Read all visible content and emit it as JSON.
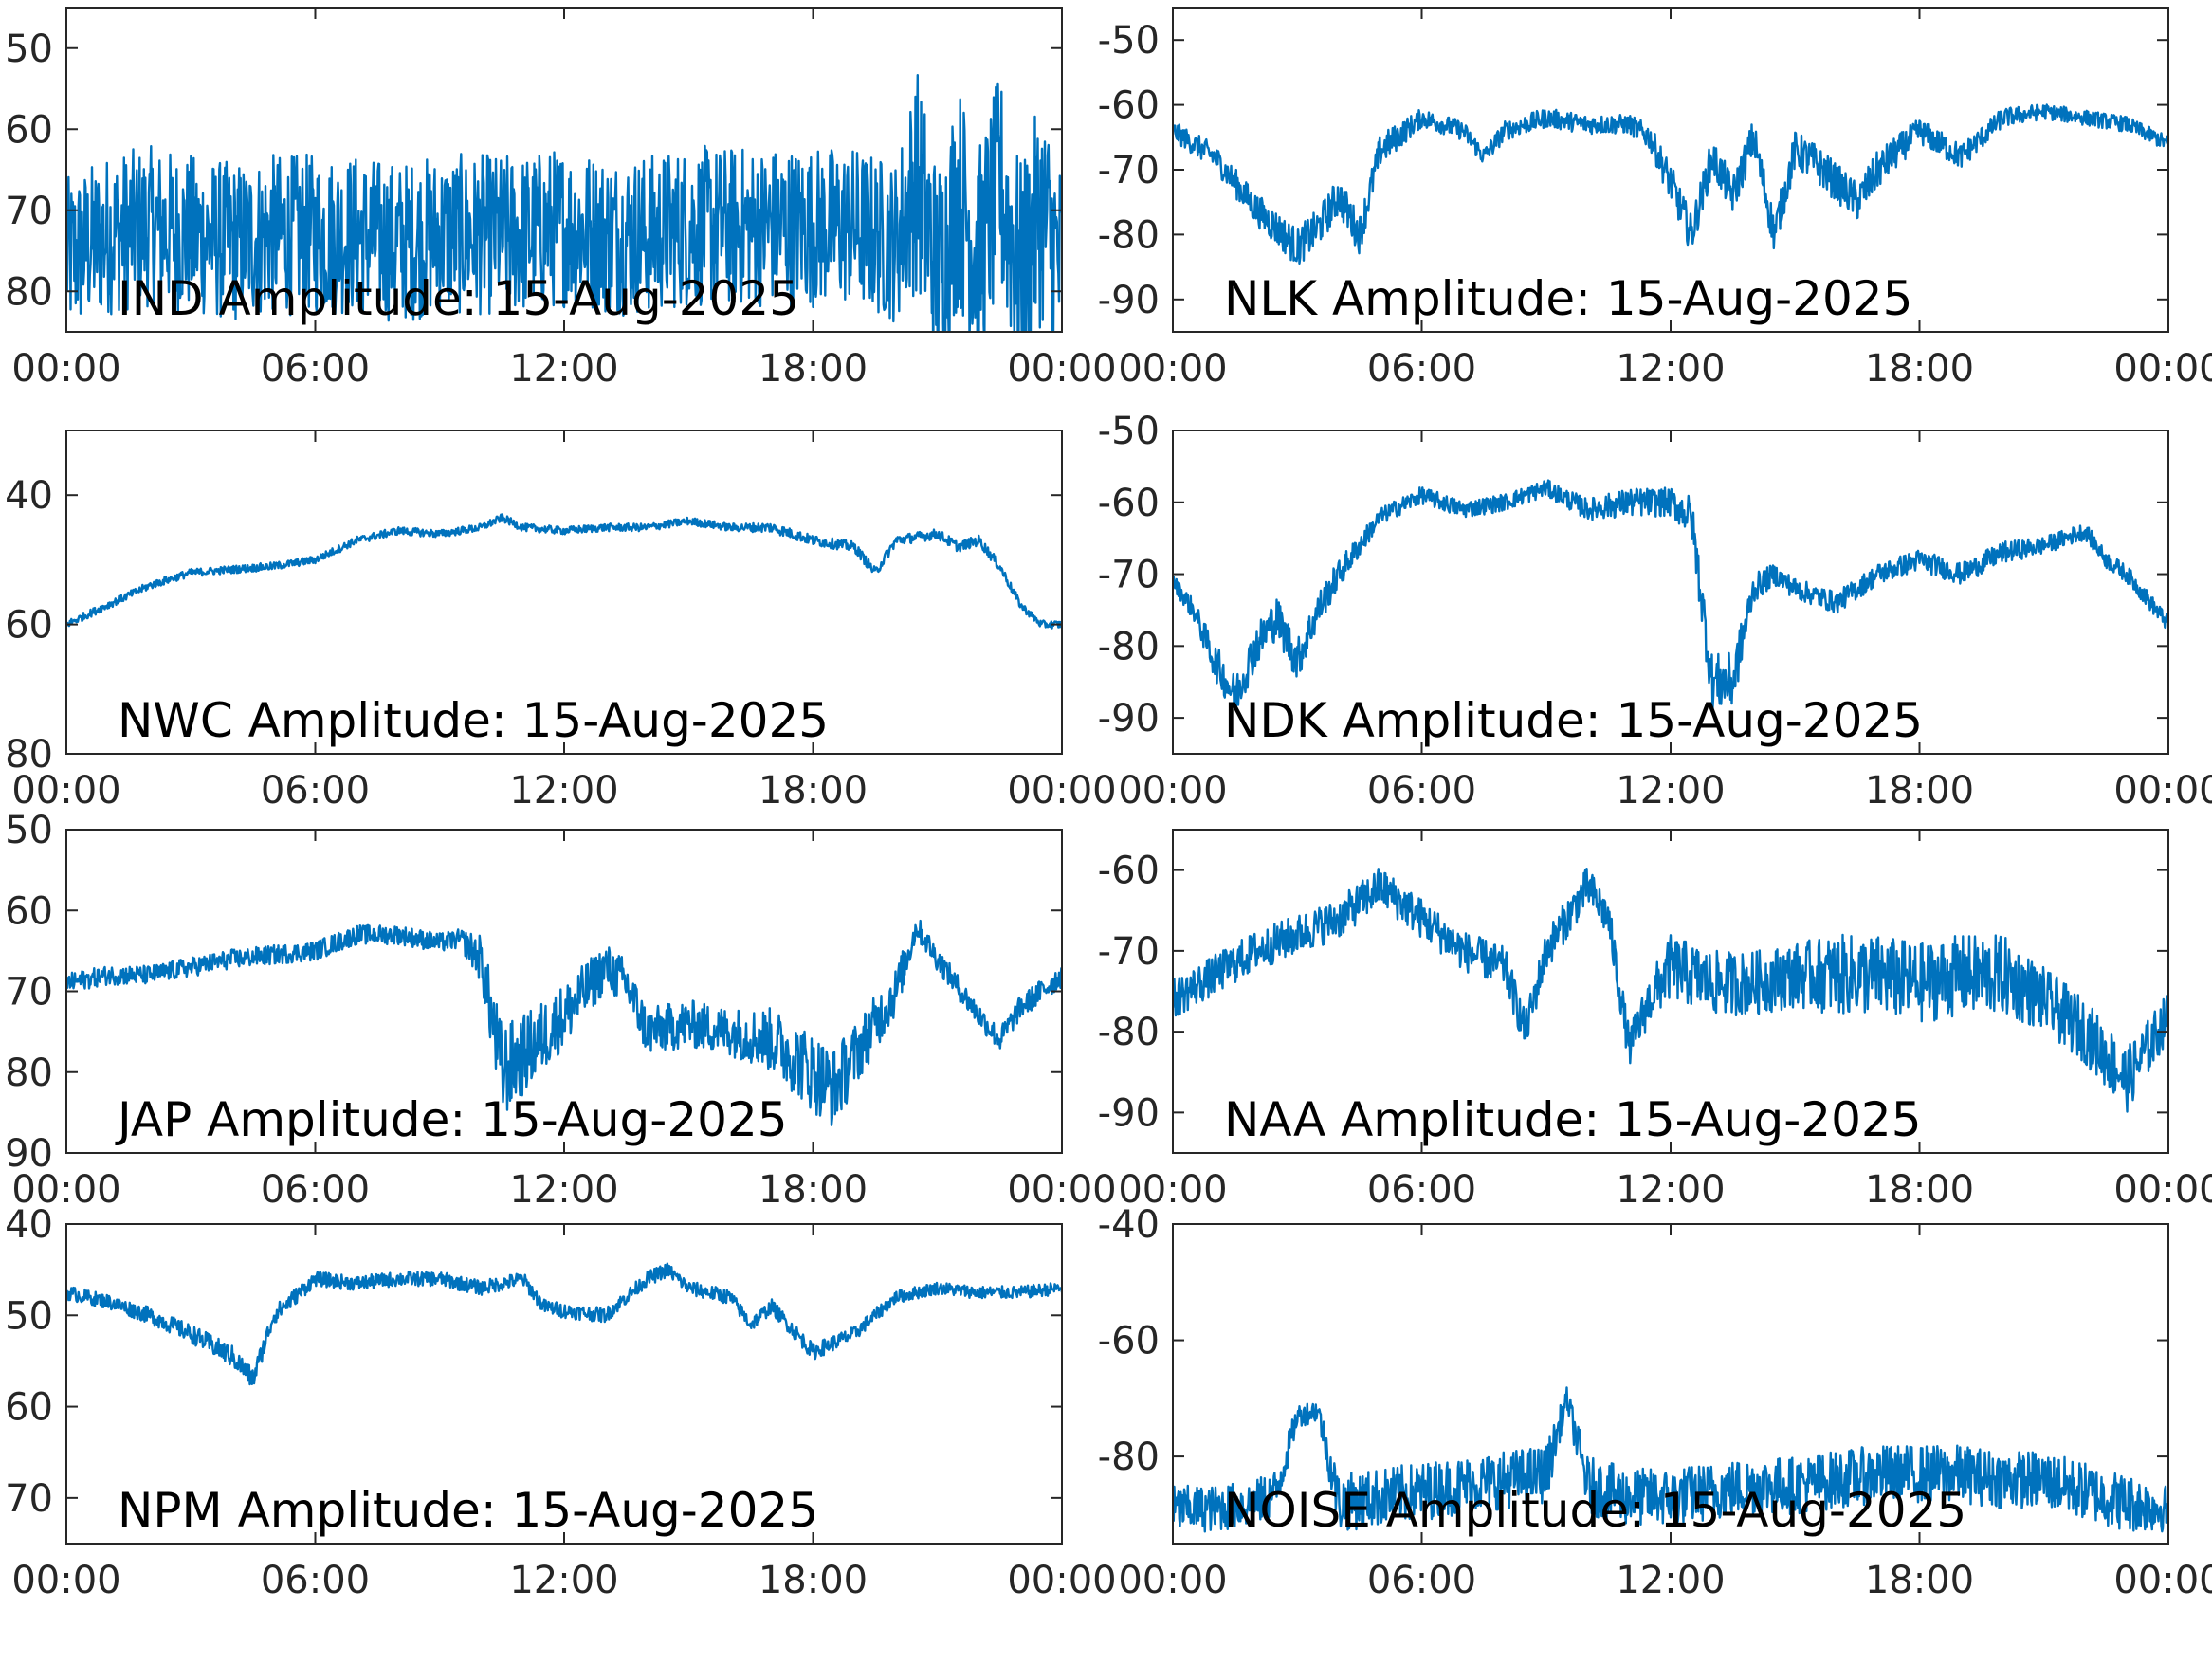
{
  "series_color": "#0072BD",
  "x_tick_labels": [
    "00:00",
    "06:00",
    "12:00",
    "18:00",
    "00:00"
  ],
  "chart_data": [
    {
      "type": "line",
      "label": "IND Amplitude: 15-Aug-2025",
      "x_ticks": [
        "00:00",
        "06:00",
        "12:00",
        "18:00",
        "00:00"
      ],
      "ylim": [
        -85,
        -45
      ],
      "y_ticks": [
        -50,
        -60,
        -70,
        -80
      ],
      "y_tick_labels": [
        "50",
        "60",
        "70",
        "80"
      ],
      "grid": false,
      "y_direction": "reversed",
      "x": [
        0,
        1,
        2,
        3,
        4,
        5,
        6,
        7,
        8,
        9,
        10,
        11,
        12,
        13,
        14,
        15,
        16,
        17,
        18,
        19,
        20,
        20.5,
        21,
        21.5,
        22,
        22.5,
        23,
        23.5,
        24
      ],
      "y": [
        -76,
        -73,
        -72,
        -73,
        -74,
        -73,
        -73,
        -73,
        -74,
        -73,
        -73,
        -73,
        -72,
        -73,
        -73,
        -72,
        -72,
        -72,
        -72,
        -72,
        -74,
        -66,
        -78,
        -68,
        -76,
        -67,
        -78,
        -70,
        -78
      ],
      "noise_envelope": [
        10,
        10,
        10,
        10,
        10,
        10,
        10,
        10,
        10,
        10,
        10,
        10,
        10,
        10,
        10,
        10,
        10,
        10,
        10,
        10,
        10,
        14,
        14,
        14,
        14,
        14,
        14,
        14,
        14
      ]
    },
    {
      "type": "line",
      "label": "NLK Amplitude: 15-Aug-2025",
      "x_ticks": [
        "00:00",
        "06:00",
        "12:00",
        "18:00",
        "00:00"
      ],
      "ylim": [
        -95,
        -45
      ],
      "y_ticks": [
        -50,
        -60,
        -70,
        -80,
        -90
      ],
      "y_tick_labels": [
        "-50",
        "-60",
        "-70",
        "-80",
        "-90"
      ],
      "grid": false,
      "y_direction": "normal",
      "x": [
        0,
        1,
        2,
        3,
        3.5,
        4,
        4.5,
        5,
        6,
        7,
        7.5,
        8,
        9,
        10,
        11,
        11.5,
        12,
        12.5,
        13,
        13.5,
        14,
        14.5,
        15,
        15.5,
        16,
        16.5,
        17,
        18,
        19,
        20,
        21,
        22,
        23,
        24
      ],
      "y": [
        -64,
        -68,
        -76,
        -82,
        -79,
        -74,
        -80,
        -67,
        -62,
        -64,
        -68,
        -64,
        -62,
        -63,
        -63,
        -65,
        -72,
        -80,
        -68,
        -74,
        -65,
        -80,
        -67,
        -69,
        -72,
        -75,
        -70,
        -64,
        -68,
        -62,
        -61,
        -62,
        -63,
        -66
      ],
      "noise_envelope": [
        1.5,
        2,
        2.5,
        3,
        3,
        3,
        3,
        2.5,
        1.5,
        1.5,
        1.5,
        1.5,
        1.5,
        1.5,
        1.5,
        2,
        3,
        3,
        3,
        3,
        3,
        3,
        3,
        3,
        3,
        3,
        3,
        2,
        2,
        1.5,
        1.2,
        1.2,
        1.2,
        1.2
      ]
    },
    {
      "type": "line",
      "label": "NWC Amplitude: 15-Aug-2025",
      "x_ticks": [
        "00:00",
        "06:00",
        "12:00",
        "18:00",
        "00:00"
      ],
      "ylim": [
        -80,
        -30
      ],
      "y_ticks": [
        -40,
        -60,
        -80
      ],
      "y_tick_labels": [
        "40",
        "60",
        "80"
      ],
      "grid": false,
      "y_direction": "reversed",
      "x": [
        0,
        1,
        2,
        3,
        4,
        5,
        6,
        7,
        8,
        9,
        10,
        10.5,
        11,
        12,
        13,
        14,
        15,
        16,
        17,
        18,
        19,
        19.5,
        20,
        21,
        21.5,
        22,
        22.5,
        23,
        23.5,
        24
      ],
      "y": [
        -60,
        -57,
        -54,
        -52,
        -51.5,
        -51,
        -50,
        -47,
        -45.5,
        -46,
        -45,
        -43.5,
        -45,
        -45.5,
        -45,
        -45,
        -44,
        -45,
        -45,
        -47,
        -48,
        -52,
        -47,
        -46,
        -48,
        -47,
        -51,
        -57,
        -60,
        -60
      ],
      "noise_envelope": [
        0.6,
        0.6,
        0.6,
        0.6,
        0.6,
        0.6,
        0.6,
        0.6,
        0.6,
        0.6,
        0.6,
        0.6,
        0.6,
        0.6,
        0.6,
        0.6,
        0.6,
        0.6,
        0.8,
        0.8,
        0.8,
        0.8,
        0.8,
        0.8,
        0.8,
        0.8,
        0.8,
        0.6,
        0.6,
        0.6
      ]
    },
    {
      "type": "line",
      "label": "NDK Amplitude: 15-Aug-2025",
      "x_ticks": [
        "00:00",
        "06:00",
        "12:00",
        "18:00",
        "00:00"
      ],
      "ylim": [
        -95,
        -50
      ],
      "y_ticks": [
        -50,
        -60,
        -70,
        -80,
        -90
      ],
      "y_tick_labels": [
        "-50",
        "-60",
        "-70",
        "-80",
        "-90"
      ],
      "grid": false,
      "y_direction": "normal",
      "x": [
        0,
        0.5,
        1,
        1.5,
        2,
        2.5,
        3,
        3.5,
        4,
        5,
        6,
        7,
        8,
        9,
        10,
        11,
        12,
        12.5,
        13,
        13.5,
        14,
        14.5,
        15,
        16,
        17,
        18,
        19,
        20,
        21,
        22,
        22.5,
        23,
        24
      ],
      "y": [
        -71,
        -75,
        -82,
        -87,
        -80,
        -76,
        -82,
        -75,
        -70,
        -62,
        -59,
        -61,
        -60,
        -58,
        -61,
        -60,
        -60,
        -62,
        -85,
        -85,
        -72,
        -70,
        -72,
        -74,
        -70,
        -68,
        -70,
        -67,
        -66,
        -64,
        -68,
        -70,
        -77
      ],
      "noise_envelope": [
        1,
        1.5,
        2.5,
        3,
        3,
        3,
        3,
        2.5,
        2,
        1.2,
        1.2,
        1.2,
        1.2,
        1.2,
        1.5,
        2,
        2,
        3,
        4,
        4,
        2,
        1.5,
        1.5,
        1.5,
        1.5,
        1.5,
        1.5,
        1.5,
        1.2,
        1.2,
        1.2,
        1.2,
        1.2
      ]
    },
    {
      "type": "line",
      "label": "JAP Amplitude: 15-Aug-2025",
      "x_ticks": [
        "00:00",
        "06:00",
        "12:00",
        "18:00",
        "00:00"
      ],
      "ylim": [
        -90,
        -50
      ],
      "y_ticks": [
        -50,
        -60,
        -70,
        -80,
        -90
      ],
      "y_tick_labels": [
        "50",
        "60",
        "70",
        "80",
        "90"
      ],
      "grid": false,
      "y_direction": "reversed",
      "x": [
        0,
        1,
        2,
        3,
        4,
        5,
        6,
        7,
        8,
        9,
        9.5,
        10,
        10.5,
        11,
        12,
        13,
        13.5,
        14,
        15,
        16,
        17,
        18,
        18.5,
        19,
        20,
        20.5,
        21,
        22,
        22.5,
        23,
        24
      ],
      "y": [
        -69,
        -68,
        -68,
        -67,
        -66,
        -65.5,
        -65,
        -63,
        -63,
        -64,
        -63.5,
        -66,
        -80,
        -78,
        -73,
        -67,
        -69,
        -75,
        -74,
        -75,
        -76,
        -80,
        -82,
        -78,
        -70,
        -62,
        -66,
        -73,
        -76,
        -72,
        -68
      ],
      "noise_envelope": [
        1.2,
        1.2,
        1.2,
        1.2,
        1.2,
        1.2,
        1.2,
        1.2,
        1.2,
        1.2,
        1.2,
        3,
        6,
        5,
        4,
        3,
        3,
        3,
        3,
        3,
        4,
        5,
        5,
        4,
        3,
        1.5,
        1.5,
        1.5,
        1.5,
        1.5,
        1.5
      ]
    },
    {
      "type": "line",
      "label": "NAA Amplitude: 15-Aug-2025",
      "x_ticks": [
        "00:00",
        "06:00",
        "12:00",
        "18:00",
        "00:00"
      ],
      "ylim": [
        -95,
        -55
      ],
      "y_ticks": [
        -60,
        -70,
        -80,
        -90
      ],
      "y_tick_labels": [
        "-60",
        "-70",
        "-80",
        "-90"
      ],
      "grid": false,
      "y_direction": "normal",
      "x": [
        0,
        1,
        2,
        3,
        4,
        5,
        6,
        7,
        8,
        8.5,
        9,
        10,
        10.5,
        11,
        11.5,
        12,
        13,
        14,
        15,
        16,
        17,
        18,
        19,
        20,
        21,
        22,
        23,
        24
      ],
      "y": [
        -76,
        -73,
        -70,
        -68,
        -66,
        -62,
        -66,
        -70,
        -72,
        -80,
        -70,
        -62,
        -66,
        -82,
        -76,
        -72,
        -74,
        -74,
        -73,
        -73,
        -73,
        -74,
        -73,
        -73,
        -76,
        -80,
        -86,
        -78
      ],
      "noise_envelope": [
        2.5,
        2.5,
        2.5,
        2.5,
        2.5,
        2.5,
        2.5,
        2.5,
        2.5,
        2.5,
        2.5,
        2.5,
        2.5,
        2.5,
        3,
        4,
        4,
        4,
        4,
        5,
        5,
        5,
        5,
        5,
        4,
        4,
        4,
        3
      ]
    },
    {
      "type": "line",
      "label": "NPM Amplitude: 15-Aug-2025",
      "x_ticks": [
        "00:00",
        "06:00",
        "12:00",
        "18:00",
        "00:00"
      ],
      "ylim": [
        -75,
        -40
      ],
      "y_ticks": [
        -40,
        -50,
        -60,
        -70
      ],
      "y_tick_labels": [
        "40",
        "50",
        "60",
        "70"
      ],
      "grid": false,
      "y_direction": "reversed",
      "x": [
        0,
        1,
        2,
        3,
        4,
        4.5,
        5,
        6,
        7,
        8,
        9,
        10,
        11,
        11.5,
        12,
        13,
        14,
        14.5,
        15,
        16,
        16.5,
        17,
        18,
        19,
        20,
        21,
        22,
        23,
        24
      ],
      "y": [
        -47.5,
        -48.5,
        -50,
        -52,
        -54.5,
        -57,
        -50,
        -46,
        -46.5,
        -46,
        -46,
        -47,
        -46,
        -49,
        -49.5,
        -50,
        -46,
        -45,
        -47,
        -48,
        -51,
        -49,
        -54,
        -52,
        -48,
        -47,
        -47.5,
        -47.5,
        -47
      ],
      "noise_envelope": [
        0.8,
        0.8,
        0.9,
        1,
        1.2,
        1.2,
        1,
        0.8,
        0.8,
        0.8,
        0.8,
        0.8,
        0.8,
        0.8,
        0.8,
        0.8,
        0.8,
        0.8,
        0.8,
        0.8,
        0.8,
        0.8,
        0.9,
        0.8,
        0.7,
        0.7,
        0.7,
        0.7,
        0.7
      ]
    },
    {
      "type": "line",
      "label": "NOISE Amplitude: 15-Aug-2025",
      "x_ticks": [
        "00:00",
        "06:00",
        "12:00",
        "18:00",
        "00:00"
      ],
      "ylim": [
        -95,
        -40
      ],
      "y_ticks": [
        -40,
        -60,
        -80
      ],
      "y_tick_labels": [
        "-40",
        "-60",
        "-80"
      ],
      "grid": false,
      "y_direction": "normal",
      "x": [
        0,
        1,
        2,
        2.5,
        3,
        3.5,
        4,
        5,
        6,
        7,
        8,
        9,
        9.5,
        10,
        11,
        12,
        13,
        14,
        15,
        16,
        17,
        18,
        19,
        20,
        21,
        22,
        23,
        24
      ],
      "y": [
        -89,
        -89,
        -88,
        -86,
        -73,
        -72,
        -88,
        -87,
        -86,
        -85,
        -84,
        -83,
        -70,
        -85,
        -87,
        -87,
        -86,
        -85,
        -85,
        -84,
        -83,
        -83,
        -83,
        -84,
        -84,
        -86,
        -88,
        -89
      ],
      "noise_envelope": [
        4,
        4,
        4,
        4,
        2,
        2,
        5,
        5,
        5,
        5,
        5,
        5,
        2,
        5,
        5,
        5,
        5,
        5,
        5,
        5,
        5,
        5,
        5,
        5,
        5,
        5,
        5,
        4
      ]
    }
  ]
}
